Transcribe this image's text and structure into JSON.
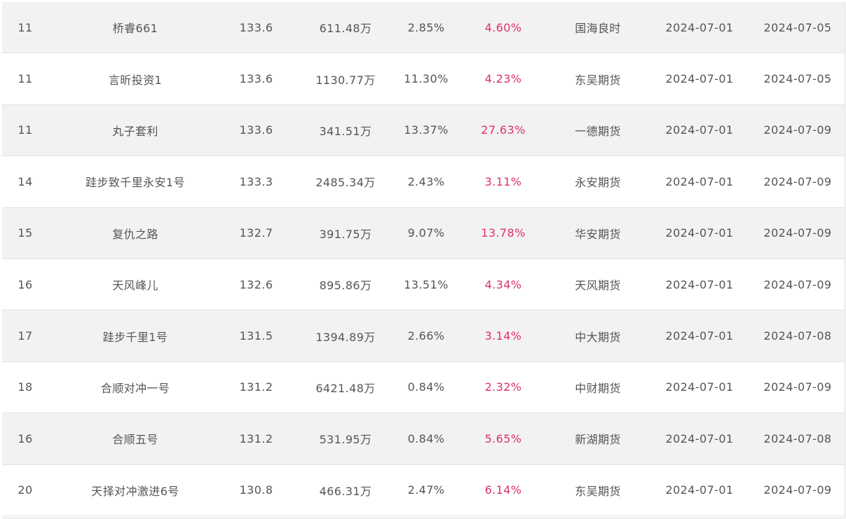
{
  "table": {
    "rows": [
      {
        "rank": "11",
        "name": "桥睿661",
        "score": "133.6",
        "scale": "611.48万",
        "drawdown": "2.85%",
        "return": "4.60%",
        "broker": "国海良时",
        "start": "2024-07-01",
        "end": "2024-07-05"
      },
      {
        "rank": "11",
        "name": "言昕投资1",
        "score": "133.6",
        "scale": "1130.77万",
        "drawdown": "11.30%",
        "return": "4.23%",
        "broker": "东吴期货",
        "start": "2024-07-01",
        "end": "2024-07-05"
      },
      {
        "rank": "11",
        "name": "丸子套利",
        "score": "133.6",
        "scale": "341.51万",
        "drawdown": "13.37%",
        "return": "27.63%",
        "broker": "一德期货",
        "start": "2024-07-01",
        "end": "2024-07-09"
      },
      {
        "rank": "14",
        "name": "跬步致千里永安1号",
        "score": "133.3",
        "scale": "2485.34万",
        "drawdown": "2.43%",
        "return": "3.11%",
        "broker": "永安期货",
        "start": "2024-07-01",
        "end": "2024-07-09"
      },
      {
        "rank": "15",
        "name": "复仇之路",
        "score": "132.7",
        "scale": "391.75万",
        "drawdown": "9.07%",
        "return": "13.78%",
        "broker": "华安期货",
        "start": "2024-07-01",
        "end": "2024-07-09"
      },
      {
        "rank": "16",
        "name": "天风峰儿",
        "score": "132.6",
        "scale": "895.86万",
        "drawdown": "13.51%",
        "return": "4.34%",
        "broker": "天风期货",
        "start": "2024-07-01",
        "end": "2024-07-09"
      },
      {
        "rank": "17",
        "name": "跬步千里1号",
        "score": "131.5",
        "scale": "1394.89万",
        "drawdown": "2.66%",
        "return": "3.14%",
        "broker": "中大期货",
        "start": "2024-07-01",
        "end": "2024-07-08"
      },
      {
        "rank": "18",
        "name": "合顺对冲一号",
        "score": "131.2",
        "scale": "6421.48万",
        "drawdown": "0.84%",
        "return": "2.32%",
        "broker": "中财期货",
        "start": "2024-07-01",
        "end": "2024-07-09"
      },
      {
        "rank": "16",
        "name": "合顺五号",
        "score": "131.2",
        "scale": "531.95万",
        "drawdown": "0.84%",
        "return": "5.65%",
        "broker": "新湖期货",
        "start": "2024-07-01",
        "end": "2024-07-08"
      },
      {
        "rank": "20",
        "name": "天择对冲激进6号",
        "score": "130.8",
        "scale": "466.31万",
        "drawdown": "2.47%",
        "return": "6.14%",
        "broker": "东吴期货",
        "start": "2024-07-01",
        "end": "2024-07-09"
      }
    ]
  },
  "colors": {
    "stripe": "#f2f2f2",
    "return_text": "#e0306a",
    "text": "#555555"
  }
}
